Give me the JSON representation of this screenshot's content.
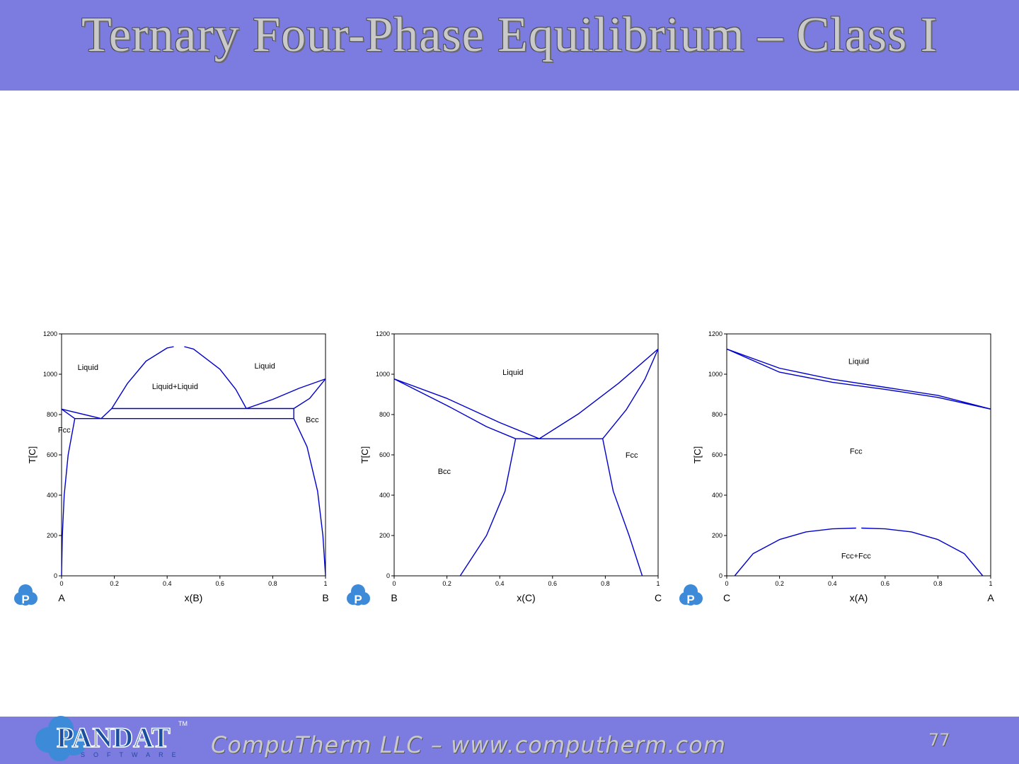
{
  "slide": {
    "title": "Ternary Four-Phase Equilibrium – Class I",
    "footer_text": "CompuTherm LLC – www.computherm.com",
    "page_number": "77",
    "logo_text": "PANDAT",
    "logo_subtext": "SOFTWARE",
    "logo_mark": "TM",
    "badge_letter": "P",
    "colors": {
      "band": "#7b7be0",
      "curve": "#0000cc",
      "badge": "#3c8ad8"
    }
  },
  "chart_data": [
    {
      "type": "line",
      "xlabel": "x(B)",
      "ylabel": "T[C]",
      "left_component": "A",
      "right_component": "B",
      "xlim": [
        0,
        1
      ],
      "ylim": [
        0,
        1200
      ],
      "xticks": [
        0,
        0.2,
        0.4,
        0.6,
        0.8,
        1
      ],
      "xtick_labels": [
        "0",
        "0.2",
        "0.4",
        "0.6",
        "0.8",
        "1"
      ],
      "yticks": [
        0,
        200,
        400,
        600,
        800,
        1000,
        1200
      ],
      "ytick_labels": [
        "0",
        "200",
        "400",
        "600",
        "800",
        "1000",
        "1200"
      ],
      "region_labels": [
        {
          "text": "Liquid",
          "x": 0.1,
          "y": 1035
        },
        {
          "text": "Liquid+Liquid",
          "x": 0.43,
          "y": 940
        },
        {
          "text": "Liquid",
          "x": 0.77,
          "y": 1042
        },
        {
          "text": "Bcc",
          "x": 0.95,
          "y": 775
        },
        {
          "text": "Fcc",
          "x": 0.01,
          "y": 725
        }
      ],
      "series": [
        {
          "values": [
            [
              0,
              827
            ],
            [
              0.05,
              780
            ]
          ]
        },
        {
          "values": [
            [
              0,
              827
            ],
            [
              0.15,
              780
            ]
          ]
        },
        {
          "values": [
            [
              0,
              0
            ],
            [
              0.003,
              200
            ],
            [
              0.01,
              400
            ],
            [
              0.025,
              600
            ],
            [
              0.05,
              780
            ]
          ]
        },
        {
          "values": [
            [
              0.05,
              780
            ],
            [
              0.88,
              780
            ]
          ]
        },
        {
          "values": [
            [
              0.15,
              780
            ],
            [
              0.19,
              830
            ],
            [
              0.7,
              830
            ],
            [
              0.88,
              830
            ]
          ]
        },
        {
          "values": [
            [
              0.19,
              830
            ],
            [
              0.25,
              955
            ],
            [
              0.32,
              1065
            ],
            [
              0.4,
              1130
            ],
            [
              0.425,
              1137
            ]
          ]
        },
        {
          "values": [
            [
              0.465,
              1137
            ],
            [
              0.5,
              1125
            ],
            [
              0.6,
              1025
            ],
            [
              0.66,
              925
            ],
            [
              0.7,
              830
            ]
          ]
        },
        {
          "values": [
            [
              0.7,
              830
            ],
            [
              0.8,
              875
            ],
            [
              0.9,
              930
            ],
            [
              1,
              977
            ]
          ]
        },
        {
          "values": [
            [
              0.88,
              830
            ],
            [
              0.88,
              780
            ]
          ]
        },
        {
          "values": [
            [
              0.88,
              830
            ],
            [
              0.94,
              880
            ],
            [
              1,
              977
            ]
          ]
        },
        {
          "values": [
            [
              0.88,
              780
            ],
            [
              0.93,
              640
            ],
            [
              0.97,
              420
            ],
            [
              0.99,
              200
            ],
            [
              1,
              0
            ]
          ]
        }
      ]
    },
    {
      "type": "line",
      "xlabel": "x(C)",
      "ylabel": "T[C]",
      "left_component": "B",
      "right_component": "C",
      "xlim": [
        0,
        1
      ],
      "ylim": [
        0,
        1200
      ],
      "xticks": [
        0,
        0.2,
        0.4,
        0.6,
        0.8,
        1
      ],
      "xtick_labels": [
        "0",
        "0.2",
        "0.4",
        "0.6",
        "0.8",
        "1"
      ],
      "yticks": [
        0,
        200,
        400,
        600,
        800,
        1000,
        1200
      ],
      "ytick_labels": [
        "0",
        "200",
        "400",
        "600",
        "800",
        "1000",
        "1200"
      ],
      "region_labels": [
        {
          "text": "Liquid",
          "x": 0.45,
          "y": 1010
        },
        {
          "text": "Bcc",
          "x": 0.19,
          "y": 520
        },
        {
          "text": "Fcc",
          "x": 0.9,
          "y": 600
        }
      ],
      "series": [
        {
          "values": [
            [
              0,
              977
            ],
            [
              0.2,
              880
            ],
            [
              0.4,
              760
            ],
            [
              0.55,
              680
            ]
          ]
        },
        {
          "values": [
            [
              0,
              977
            ],
            [
              0.2,
              845
            ],
            [
              0.35,
              740
            ],
            [
              0.46,
              680
            ]
          ]
        },
        {
          "values": [
            [
              0.46,
              680
            ],
            [
              0.79,
              680
            ]
          ]
        },
        {
          "values": [
            [
              0.55,
              680
            ],
            [
              0.7,
              805
            ],
            [
              0.85,
              955
            ],
            [
              1,
              1125
            ]
          ]
        },
        {
          "values": [
            [
              0.79,
              680
            ],
            [
              0.88,
              825
            ],
            [
              0.95,
              975
            ],
            [
              1,
              1125
            ]
          ]
        },
        {
          "values": [
            [
              0.25,
              0
            ],
            [
              0.35,
              200
            ],
            [
              0.42,
              420
            ],
            [
              0.46,
              680
            ]
          ]
        },
        {
          "values": [
            [
              0.79,
              680
            ],
            [
              0.83,
              420
            ],
            [
              0.89,
              200
            ],
            [
              0.94,
              0
            ]
          ]
        }
      ]
    },
    {
      "type": "line",
      "xlabel": "x(A)",
      "ylabel": "T[C]",
      "left_component": "C",
      "right_component": "A",
      "xlim": [
        0,
        1
      ],
      "ylim": [
        0,
        1200
      ],
      "xticks": [
        0,
        0.2,
        0.4,
        0.6,
        0.8,
        1
      ],
      "xtick_labels": [
        "0",
        "0.2",
        "0.4",
        "0.6",
        "0.8",
        "1"
      ],
      "yticks": [
        0,
        200,
        400,
        600,
        800,
        1000,
        1200
      ],
      "ytick_labels": [
        "0",
        "200",
        "400",
        "600",
        "800",
        "1000",
        "1200"
      ],
      "region_labels": [
        {
          "text": "Liquid",
          "x": 0.5,
          "y": 1065
        },
        {
          "text": "Fcc",
          "x": 0.49,
          "y": 620
        },
        {
          "text": "Fcc+Fcc",
          "x": 0.49,
          "y": 100
        }
      ],
      "series": [
        {
          "values": [
            [
              0,
              1125
            ],
            [
              0.2,
              1030
            ],
            [
              0.4,
              975
            ],
            [
              0.6,
              935
            ],
            [
              0.8,
              895
            ],
            [
              1,
              827
            ]
          ]
        },
        {
          "values": [
            [
              0,
              1125
            ],
            [
              0.2,
              1010
            ],
            [
              0.4,
              960
            ],
            [
              0.6,
              925
            ],
            [
              0.8,
              885
            ],
            [
              1,
              827
            ]
          ]
        },
        {
          "values": [
            [
              0.03,
              0
            ],
            [
              0.1,
              110
            ],
            [
              0.2,
              180
            ],
            [
              0.3,
              218
            ],
            [
              0.4,
              233
            ],
            [
              0.49,
              237
            ]
          ]
        },
        {
          "values": [
            [
              0.51,
              237
            ],
            [
              0.6,
              233
            ],
            [
              0.7,
              218
            ],
            [
              0.8,
              180
            ],
            [
              0.9,
              110
            ],
            [
              0.97,
              0
            ]
          ]
        }
      ]
    }
  ]
}
